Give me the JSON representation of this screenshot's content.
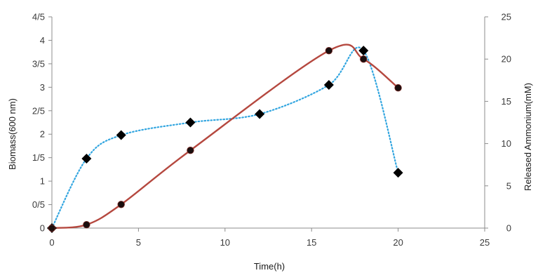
{
  "chart_data": {
    "type": "line",
    "xlabel": "Time(h)",
    "ylabel_left": "Biomass(600 nm)",
    "ylabel_right": "Released Ammonium(mM)",
    "xlim": [
      0,
      25
    ],
    "x_ticks": [
      0,
      5,
      10,
      15,
      20,
      25
    ],
    "ylim_left": [
      0,
      4.5
    ],
    "ylim_right": [
      0,
      25
    ],
    "y_ticks_left": [
      {
        "value": 0,
        "label": "0"
      },
      {
        "value": 0.5,
        "label": "0/5"
      },
      {
        "value": 1,
        "label": "1"
      },
      {
        "value": 1.5,
        "label": "1/5"
      },
      {
        "value": 2,
        "label": "2"
      },
      {
        "value": 2.5,
        "label": "2/5"
      },
      {
        "value": 3,
        "label": "3"
      },
      {
        "value": 3.5,
        "label": "3/5"
      },
      {
        "value": 4,
        "label": "4"
      },
      {
        "value": 4.5,
        "label": "4/5"
      }
    ],
    "y_ticks_right": [
      0,
      5,
      10,
      15,
      20,
      25
    ],
    "grid": false,
    "legend": "none",
    "series": [
      {
        "axis": "left",
        "style": "dotted",
        "marker": "diamond",
        "color": "#33a6e0",
        "x": [
          0,
          2,
          4,
          8,
          12,
          16,
          18,
          20
        ],
        "y": [
          0,
          1.48,
          1.98,
          2.25,
          2.43,
          3.05,
          3.78,
          1.18
        ]
      },
      {
        "axis": "right",
        "style": "solid-smooth",
        "marker": "circle",
        "color": "#b5483f",
        "x": [
          0,
          2,
          4,
          8,
          16,
          18,
          20
        ],
        "y": [
          0,
          0.4,
          2.8,
          9.2,
          21.0,
          20.0,
          16.6
        ]
      }
    ]
  }
}
